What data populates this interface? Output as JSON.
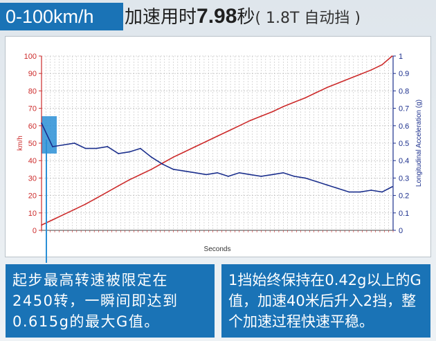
{
  "header": {
    "speed_label": "0-100km/h",
    "accel_label": "加速用时",
    "time_value": "7.98",
    "time_unit": "秒",
    "spec": "( 1.8T 自动挡 )"
  },
  "chart_data": {
    "type": "line",
    "xlabel": "Seconds",
    "ylabel_left": "km/h",
    "ylabel_right": "Longitudinal Acceleration (g)",
    "ylim_left": [
      0,
      100
    ],
    "ylim_right": [
      0,
      1
    ],
    "yticks_left": [
      "0",
      "10",
      "20",
      "30",
      "40",
      "50",
      "60",
      "70",
      "80",
      "90",
      "100"
    ],
    "yticks_right": [
      "0",
      "0.1",
      "0.2",
      "0.3",
      "0.4",
      "0.5",
      "0.6",
      "0.7",
      "0.8",
      "0.9",
      "1"
    ],
    "x": [
      0,
      0.25,
      0.5,
      0.75,
      1,
      1.25,
      1.5,
      1.75,
      2,
      2.25,
      2.5,
      2.75,
      3,
      3.25,
      3.5,
      3.75,
      4,
      4.25,
      4.5,
      4.75,
      5,
      5.25,
      5.5,
      5.75,
      6,
      6.25,
      6.5,
      6.75,
      7,
      7.25,
      7.5,
      7.75,
      7.98
    ],
    "series": [
      {
        "values": [
          3,
          6,
          9,
          12,
          15,
          18.5,
          22,
          25.5,
          29,
          32,
          35,
          38.5,
          42,
          45,
          48,
          51,
          54,
          57,
          60,
          63,
          65.5,
          68,
          71,
          73.5,
          76,
          79,
          82,
          84.5,
          87,
          89.5,
          92,
          95,
          100
        ],
        "color": "#cc2a2a",
        "axis": "left"
      },
      {
        "values": [
          0.615,
          0.48,
          0.49,
          0.5,
          0.47,
          0.47,
          0.48,
          0.44,
          0.45,
          0.47,
          0.42,
          0.38,
          0.35,
          0.34,
          0.33,
          0.32,
          0.33,
          0.31,
          0.33,
          0.32,
          0.31,
          0.32,
          0.33,
          0.31,
          0.3,
          0.28,
          0.26,
          0.24,
          0.22,
          0.22,
          0.23,
          0.22,
          0.25
        ],
        "color": "#1a2e8c",
        "axis": "right"
      }
    ],
    "grid": true
  },
  "captions": {
    "left": "起步最高转速被限定在2450转，一瞬间即达到0.615g的最大G值。",
    "right": "1挡始终保持在0.42g以上的G值，加速40米后升入2挡，整个加速过程快速平稳。"
  },
  "colors": {
    "accent": "#1a73b6",
    "speed": "#cc2a2a",
    "accel": "#1a2e8c"
  }
}
